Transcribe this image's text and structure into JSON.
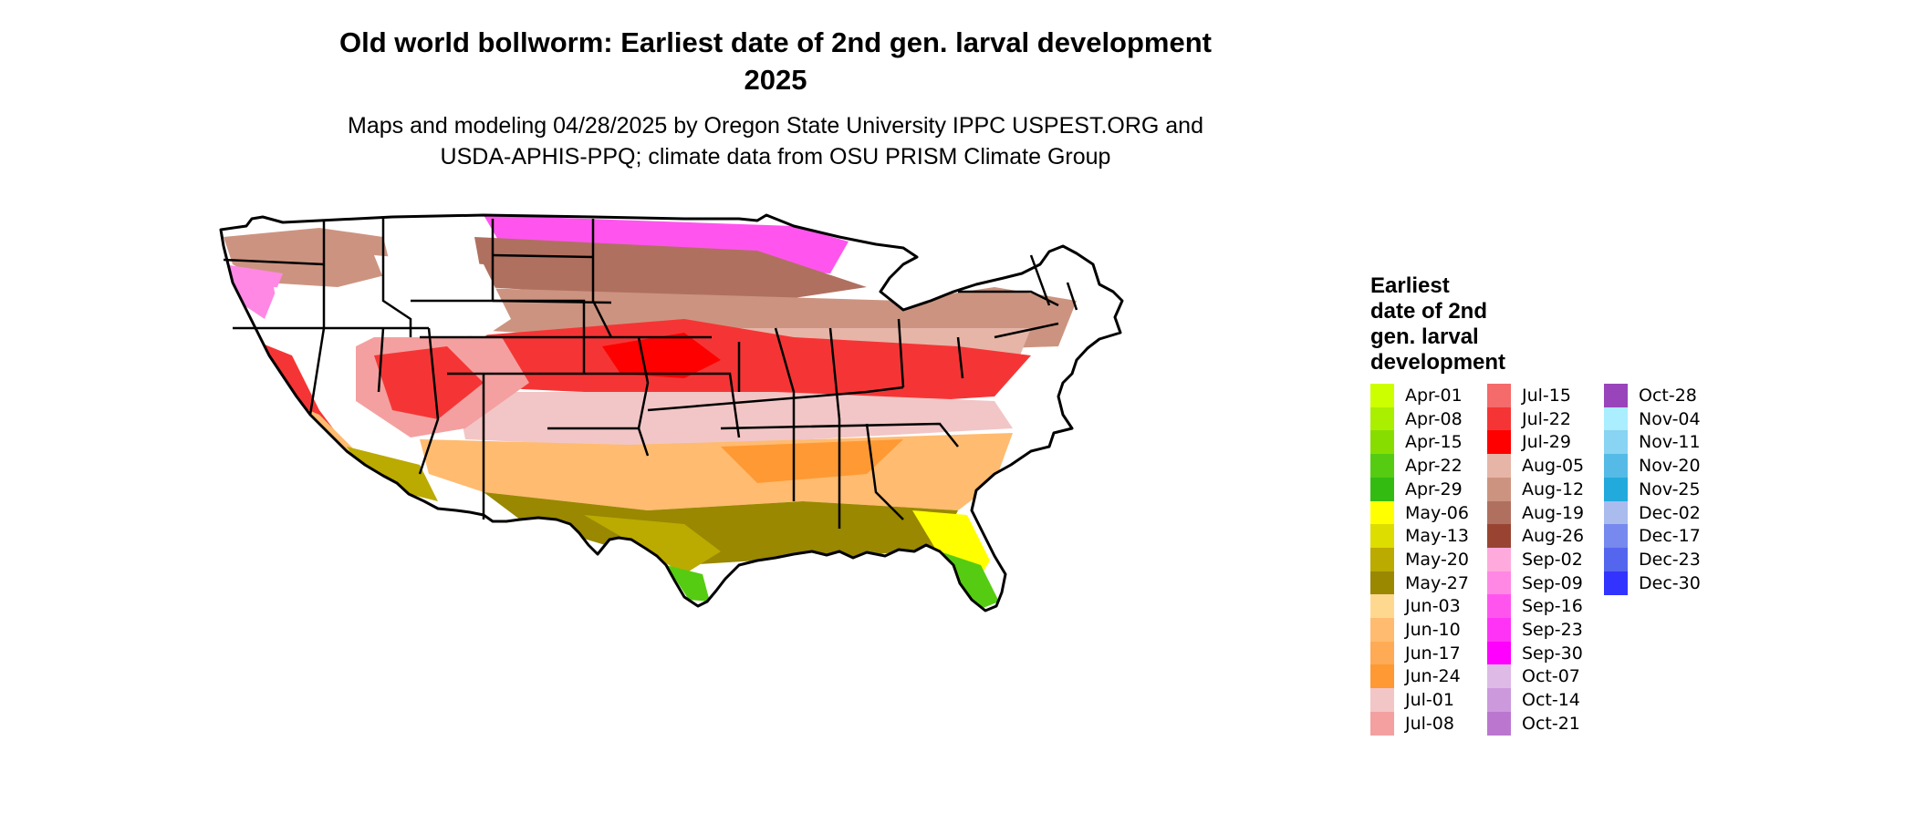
{
  "header": {
    "title_line1": "Old world bollworm: Earliest date of 2nd gen. larval development",
    "title_line2": "2025",
    "subtitle_line1": "Maps and modeling 04/28/2025 by Oregon State University IPPC USPEST.ORG and",
    "subtitle_line2": "USDA-APHIS-PPQ; climate data from OSU PRISM Climate Group"
  },
  "map": {
    "region": "contiguous United States",
    "projection_note": "state boundaries drawn in black",
    "regions": [
      {
        "area": "southern Texas tip",
        "value": "Apr-22"
      },
      {
        "area": "southern Florida",
        "value": "Apr-22"
      },
      {
        "area": "central Florida",
        "value": "May-06"
      },
      {
        "area": "Gulf coast Texas/Louisiana",
        "value": "May-20"
      },
      {
        "area": "Gulf coastal plain",
        "value": "May-27"
      },
      {
        "area": "southern Arizona desert",
        "value": "May-20"
      },
      {
        "area": "Texas / Deep South interior",
        "value": "Jun-10"
      },
      {
        "area": "Oklahoma / Arkansas / Tennessee",
        "value": "Jul-01"
      },
      {
        "area": "Kansas / Missouri / Illinois / Kentucky",
        "value": "Jul-22"
      },
      {
        "area": "Nebraska / Iowa / Ohio / Pennsylvania",
        "value": "Aug-12"
      },
      {
        "area": "Dakotas / Minnesota / Wisconsin",
        "value": "Aug-19"
      },
      {
        "area": "northern fringe",
        "value": "Sep-16"
      },
      {
        "area": "California Central Valley",
        "value": "Jul-22"
      },
      {
        "area": "Rocky Mountains / northern tier interior",
        "value": "none"
      }
    ]
  },
  "legend": {
    "title_lines": [
      "Earliest",
      "date of 2nd",
      "gen. larval",
      "development"
    ],
    "items": [
      {
        "label": "Apr-01",
        "color": "#ccff00"
      },
      {
        "label": "Apr-08",
        "color": "#aaee00"
      },
      {
        "label": "Apr-15",
        "color": "#88dd00"
      },
      {
        "label": "Apr-22",
        "color": "#55cc11"
      },
      {
        "label": "Apr-29",
        "color": "#33bb11"
      },
      {
        "label": "May-06",
        "color": "#ffff00"
      },
      {
        "label": "May-13",
        "color": "#dddd00"
      },
      {
        "label": "May-20",
        "color": "#bbaa00"
      },
      {
        "label": "May-27",
        "color": "#998800"
      },
      {
        "label": "Jun-03",
        "color": "#ffd890"
      },
      {
        "label": "Jun-10",
        "color": "#ffbb70"
      },
      {
        "label": "Jun-17",
        "color": "#ffaa55"
      },
      {
        "label": "Jun-24",
        "color": "#ff9933"
      },
      {
        "label": "Jul-01",
        "color": "#f2c6c6"
      },
      {
        "label": "Jul-08",
        "color": "#f4a0a0"
      },
      {
        "label": "Jul-15",
        "color": "#f56a6a"
      },
      {
        "label": "Jul-22",
        "color": "#f53535"
      },
      {
        "label": "Jul-29",
        "color": "#ff0000"
      },
      {
        "label": "Aug-05",
        "color": "#e6b5a8"
      },
      {
        "label": "Aug-12",
        "color": "#cc9480"
      },
      {
        "label": "Aug-19",
        "color": "#b07060"
      },
      {
        "label": "Aug-26",
        "color": "#994433"
      },
      {
        "label": "Sep-02",
        "color": "#ffaadd"
      },
      {
        "label": "Sep-09",
        "color": "#ff88e4"
      },
      {
        "label": "Sep-16",
        "color": "#ff55ee"
      },
      {
        "label": "Sep-23",
        "color": "#ff33f5"
      },
      {
        "label": "Sep-30",
        "color": "#ff00ff"
      },
      {
        "label": "Oct-07",
        "color": "#ddbbe6"
      },
      {
        "label": "Oct-14",
        "color": "#cc99dd"
      },
      {
        "label": "Oct-21",
        "color": "#bb77d0"
      },
      {
        "label": "Oct-28",
        "color": "#9944bb"
      },
      {
        "label": "Nov-04",
        "color": "#aaeeff"
      },
      {
        "label": "Nov-11",
        "color": "#88d4f2"
      },
      {
        "label": "Nov-20",
        "color": "#55bbe6"
      },
      {
        "label": "Nov-25",
        "color": "#22aadd"
      },
      {
        "label": "Dec-02",
        "color": "#aabbee"
      },
      {
        "label": "Dec-17",
        "color": "#7788ee"
      },
      {
        "label": "Dec-23",
        "color": "#5566ee"
      },
      {
        "label": "Dec-30",
        "color": "#3333ff"
      }
    ]
  }
}
